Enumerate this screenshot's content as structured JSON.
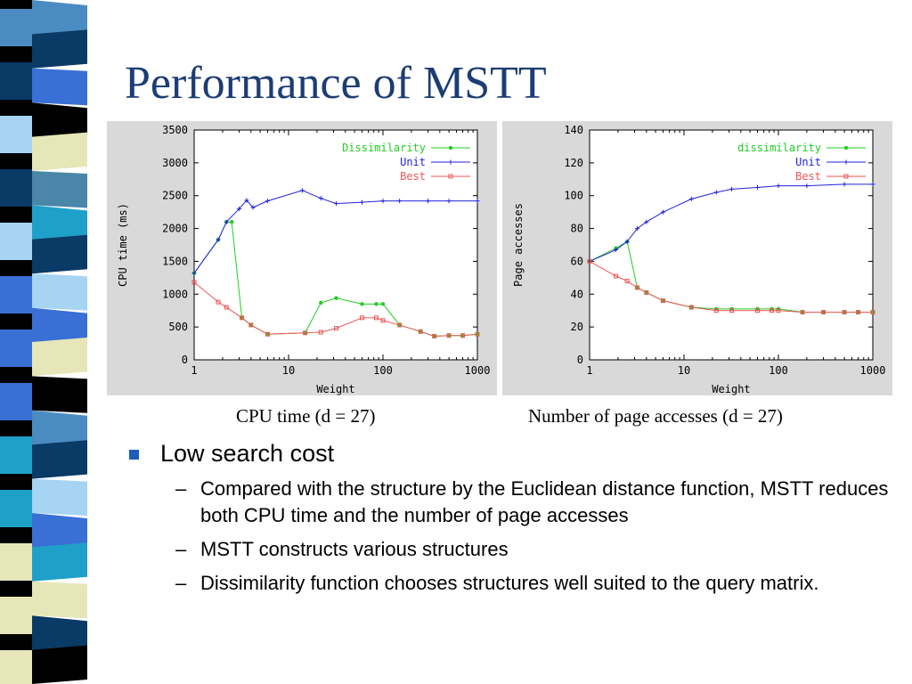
{
  "slide": {
    "title": "Performance of MSTT",
    "captions": {
      "cpu": "CPU time (d = 27)",
      "page": "Number of page accesses (d = 27)"
    }
  },
  "bullets": [
    {
      "text": "Low search cost",
      "sub": [
        "Compared with the structure by the Euclidean distance function, MSTT reduces both CPU time and the number of page accesses",
        "MSTT constructs various structures",
        "Dissimilarity function chooses structures well suited to the query matrix."
      ]
    }
  ],
  "sub_marker": "–",
  "stripe": {
    "colors": [
      "#4a8cc2",
      "#0a3a66",
      "#3a6fd6",
      "#000000",
      "#e6e6b8",
      "#4a86a8",
      "#1fa0c8",
      "#0a3a66",
      "#a6d4f2",
      "#3a6fd6",
      "#e6e6b8",
      "#000000",
      "#4a8cc2",
      "#0a3a66",
      "#a6d4f2",
      "#3a6fd6",
      "#1fa0c8",
      "#e6e6b8",
      "#0a3a66",
      "#000000"
    ]
  },
  "chart_data": [
    {
      "type": "line",
      "x_scale": "log",
      "xlabel": "Weight",
      "ylabel": "CPU time (ms)",
      "xlim": [
        1,
        1000
      ],
      "ylim": [
        0,
        3500
      ],
      "x_ticks": [
        "1",
        "10",
        "100",
        "1000"
      ],
      "y_ticks": [
        "0",
        "500",
        "1000",
        "1500",
        "2000",
        "2500",
        "3000",
        "3500"
      ],
      "legend_position": "top-right",
      "series": [
        {
          "name": "Dissimilarity",
          "color": "#22cc22",
          "marker": "dot",
          "points": [
            [
              1,
              1320
            ],
            [
              1.8,
              1830
            ],
            [
              2.2,
              2100
            ],
            [
              2.5,
              2100
            ],
            [
              3.2,
              640
            ],
            [
              4,
              530
            ],
            [
              6,
              390
            ],
            [
              15,
              410
            ],
            [
              22,
              870
            ],
            [
              32,
              940
            ],
            [
              60,
              850
            ],
            [
              85,
              850
            ],
            [
              100,
              850
            ],
            [
              150,
              530
            ],
            [
              250,
              430
            ],
            [
              350,
              360
            ],
            [
              500,
              370
            ],
            [
              700,
              370
            ],
            [
              1000,
              390
            ]
          ]
        },
        {
          "name": "Unit",
          "color": "#2222dd",
          "marker": "plus",
          "points": [
            [
              1,
              1320
            ],
            [
              1.8,
              1830
            ],
            [
              2.2,
              2100
            ],
            [
              3,
              2300
            ],
            [
              3.6,
              2430
            ],
            [
              4.2,
              2320
            ],
            [
              6,
              2420
            ],
            [
              14,
              2580
            ],
            [
              22,
              2460
            ],
            [
              32,
              2380
            ],
            [
              60,
              2400
            ],
            [
              100,
              2420
            ],
            [
              150,
              2420
            ],
            [
              300,
              2420
            ],
            [
              500,
              2420
            ],
            [
              1000,
              2420
            ]
          ]
        },
        {
          "name": "Best",
          "color": "#ee5555",
          "marker": "square",
          "points": [
            [
              1,
              1180
            ],
            [
              1.8,
              880
            ],
            [
              2.2,
              800
            ],
            [
              3.2,
              640
            ],
            [
              4,
              530
            ],
            [
              6,
              390
            ],
            [
              15,
              410
            ],
            [
              22,
              420
            ],
            [
              32,
              480
            ],
            [
              60,
              640
            ],
            [
              85,
              640
            ],
            [
              100,
              600
            ],
            [
              150,
              530
            ],
            [
              250,
              430
            ],
            [
              350,
              360
            ],
            [
              500,
              370
            ],
            [
              700,
              370
            ],
            [
              1000,
              390
            ]
          ]
        }
      ]
    },
    {
      "type": "line",
      "x_scale": "log",
      "xlabel": "Weight",
      "ylabel": "Page accesses",
      "xlim": [
        1,
        1000
      ],
      "ylim": [
        0,
        140
      ],
      "x_ticks": [
        "1",
        "10",
        "100",
        "1000"
      ],
      "y_ticks": [
        "0",
        "20",
        "40",
        "60",
        "80",
        "100",
        "120",
        "140"
      ],
      "legend_position": "top-right",
      "series": [
        {
          "name": "dissimilarity",
          "color": "#22cc22",
          "marker": "dot",
          "points": [
            [
              1,
              60
            ],
            [
              1.9,
              68
            ],
            [
              2.5,
              72
            ],
            [
              3.2,
              44
            ],
            [
              4,
              41
            ],
            [
              6,
              36
            ],
            [
              12,
              32
            ],
            [
              22,
              31
            ],
            [
              32,
              31
            ],
            [
              60,
              31
            ],
            [
              85,
              31
            ],
            [
              100,
              31
            ],
            [
              180,
              29
            ],
            [
              300,
              29
            ],
            [
              500,
              29
            ],
            [
              700,
              29
            ],
            [
              1000,
              29
            ]
          ]
        },
        {
          "name": "Unit",
          "color": "#2222dd",
          "marker": "plus",
          "points": [
            [
              1,
              60
            ],
            [
              1.9,
              67
            ],
            [
              2.5,
              72
            ],
            [
              3.2,
              80
            ],
            [
              4,
              84
            ],
            [
              6,
              90
            ],
            [
              12,
              98
            ],
            [
              22,
              102
            ],
            [
              32,
              104
            ],
            [
              60,
              105
            ],
            [
              100,
              106
            ],
            [
              200,
              106
            ],
            [
              500,
              107
            ],
            [
              1000,
              107
            ]
          ]
        },
        {
          "name": "Best",
          "color": "#ee5555",
          "marker": "square",
          "points": [
            [
              1,
              60
            ],
            [
              1.9,
              51
            ],
            [
              2.5,
              48
            ],
            [
              3.2,
              44
            ],
            [
              4,
              41
            ],
            [
              6,
              36
            ],
            [
              12,
              32
            ],
            [
              22,
              30
            ],
            [
              32,
              30
            ],
            [
              60,
              30
            ],
            [
              85,
              30
            ],
            [
              100,
              30
            ],
            [
              180,
              29
            ],
            [
              300,
              29
            ],
            [
              500,
              29
            ],
            [
              700,
              29
            ],
            [
              1000,
              29
            ]
          ]
        }
      ]
    }
  ]
}
